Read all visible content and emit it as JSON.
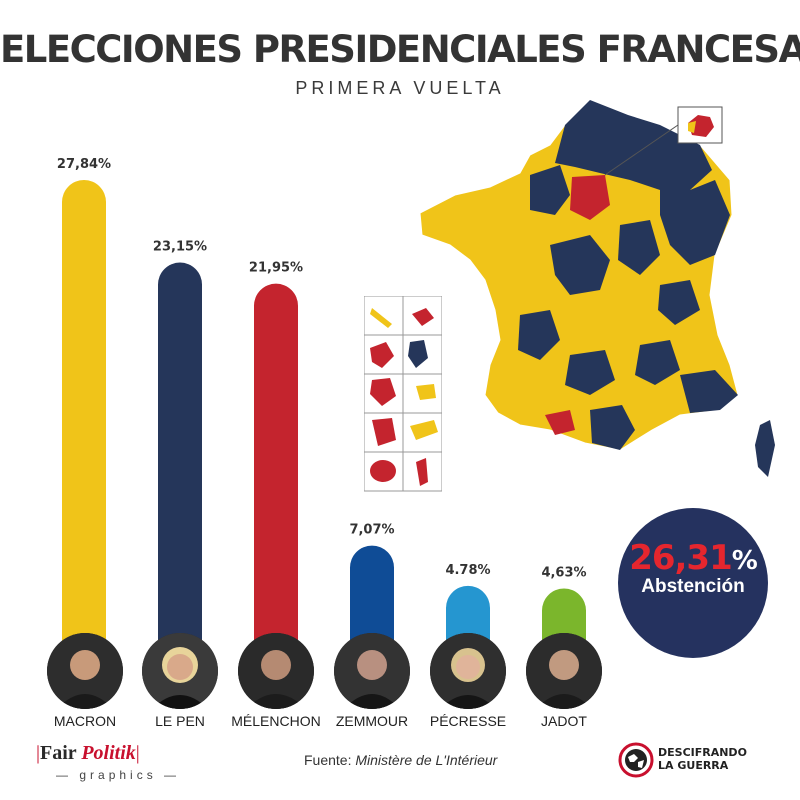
{
  "header": {
    "title": "ELECCIONES PRESIDENCIALES FRANCESAS",
    "subtitle": "PRIMERA VUELTA"
  },
  "chart_data": {
    "type": "bar",
    "title": "ELECCIONES PRESIDENCIALES FRANCESAS",
    "subtitle": "PRIMERA VUELTA",
    "categories": [
      "MACRON",
      "LE PEN",
      "MÉLENCHON",
      "ZEMMOUR",
      "PÉCRESSE",
      "JADOT"
    ],
    "values": [
      27.84,
      23.15,
      21.95,
      7.07,
      4.78,
      4.63
    ],
    "value_labels": [
      "27,84%",
      "23,15%",
      "21,95%",
      "7,07%",
      "4.78%",
      "4,63%"
    ],
    "colors": [
      "#f0c419",
      "#25365a",
      "#c4242e",
      "#0f4c96",
      "#2596d0",
      "#7bb62c"
    ],
    "xlabel": "",
    "ylabel": "",
    "ylim": [
      0,
      30
    ]
  },
  "abstention": {
    "value": "26,31",
    "unit": "%",
    "label": "Abstención"
  },
  "footer": {
    "logo_main": "Fair",
    "logo_accent": "Politik",
    "logo_sub": "graphics",
    "source_prefix": "Fuente:",
    "source_name": "Ministère de L'Intérieur",
    "brand_line1": "DESCIFRANDO",
    "brand_line2": "LA GUERRA"
  },
  "map": {
    "legend_colors": {
      "macron": "#f0c419",
      "lepen": "#25365a",
      "melenchon": "#c4242e"
    }
  }
}
